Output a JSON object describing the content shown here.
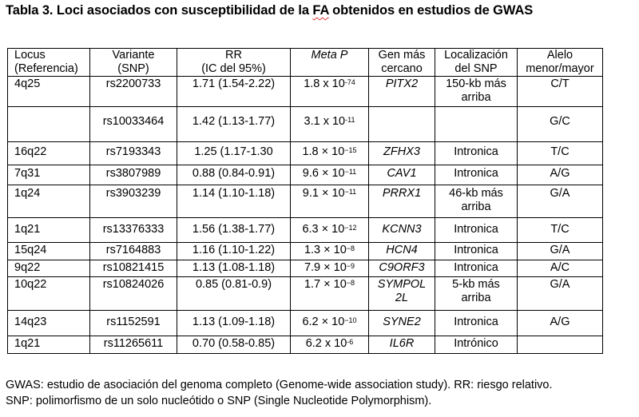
{
  "title": {
    "before": "Tabla 3. Loci asociados con susceptibilidad de la ",
    "fa": "FA",
    "after": " obtenidos en estudios de GWAS"
  },
  "table": {
    "headers": [
      [
        "Locus",
        "(Referencia)"
      ],
      [
        "Variante",
        "(SNP)"
      ],
      [
        "RR",
        "(IC del 95%)"
      ],
      [
        "Meta P"
      ],
      [
        "Gen más",
        "cercano"
      ],
      [
        "Localización",
        "del SNP"
      ],
      [
        "Alelo",
        "menor/mayor"
      ]
    ],
    "rows": [
      {
        "locus": "4q25",
        "snp": "rs2200733",
        "rr": "1.71 (1.54-2.22)",
        "p_base": "1.8 x 10",
        "p_exp": "-74",
        "gene": "PITX2",
        "loc": [
          "150-kb más",
          "arriba"
        ],
        "allele": "C/T"
      },
      {
        "locus": "",
        "snp": "rs10033464",
        "rr": "1.42 (1.13-1.77)",
        "p_base": "3.1 x 10",
        "p_exp": "-11",
        "gene": "",
        "loc": [
          ""
        ],
        "allele": "G/C"
      },
      {
        "locus": "16q22",
        "snp": "rs7193343",
        "rr": "1.25 (1.17-1.30",
        "p_base": "1.8 × 10",
        "p_exp": "−15",
        "gene": "ZFHX3",
        "loc": [
          "Intronica"
        ],
        "allele": "T/C"
      },
      {
        "locus": "7q31",
        "snp": "rs3807989",
        "rr": "0.88 (0.84-0.91)",
        "p_base": "9.6 × 10",
        "p_exp": "−11",
        "gene": "CAV1",
        "loc": [
          "Intronica"
        ],
        "allele": "A/G"
      },
      {
        "locus": "1q24",
        "snp": "rs3903239",
        "rr": "1.14 (1.10-1.18)",
        "p_base": "9.1 × 10",
        "p_exp": "−11",
        "gene": "PRRX1",
        "loc": [
          "46-kb más",
          "arriba"
        ],
        "allele": "G/A"
      },
      {
        "locus": "1q21",
        "snp": "rs13376333",
        "rr": "1.56 (1.38-1.77)",
        "p_base": "6.3 × 10",
        "p_exp": "−12",
        "gene": "KCNN3",
        "loc": [
          "Intronica"
        ],
        "allele": "T/C"
      },
      {
        "locus": "15q24",
        "snp": "rs7164883",
        "rr": "1.16 (1.10-1.22)",
        "p_base": "1.3 × 10",
        "p_exp": "−8",
        "gene": "HCN4",
        "loc": [
          "Intronica"
        ],
        "allele": "G/A"
      },
      {
        "locus": "9q22",
        "snp": "rs10821415",
        "rr": "1.13 (1.08-1.18)",
        "p_base": "7.9 × 10",
        "p_exp": "−9",
        "gene": "C9ORF3",
        "loc": [
          "Intronica"
        ],
        "allele": "A/C"
      },
      {
        "locus": "10q22",
        "snp": "rs10824026",
        "rr": "0.85 (0.81-0.9)",
        "p_base": "1.7 × 10",
        "p_exp": "−8",
        "gene": [
          "SYMPOL",
          "2L"
        ],
        "loc": [
          "5-kb más",
          "arriba"
        ],
        "allele": "G/A"
      },
      {
        "locus": "14q23",
        "snp": "rs1152591",
        "rr": "1.13 (1.09-1.18)",
        "p_base": "6.2 × 10",
        "p_exp": "−10",
        "gene": "SYNE2",
        "loc": [
          "Intronica"
        ],
        "allele": "A/G"
      },
      {
        "locus": "1q21",
        "snp": "rs11265611",
        "rr": "0.70 (0.58-0.85)",
        "p_base": "6.2 x  10",
        "p_exp": "-6",
        "gene": "IL6R",
        "loc": [
          "Intrónico"
        ],
        "allele": ""
      }
    ]
  },
  "footnote": {
    "line1": "GWAS: estudio de asociación del genoma completo (Genome-wide association study). RR: riesgo relativo.",
    "line2": "SNP: polimorfismo de un solo nucleótido o SNP (Single Nucleotide Polymorphism)."
  }
}
